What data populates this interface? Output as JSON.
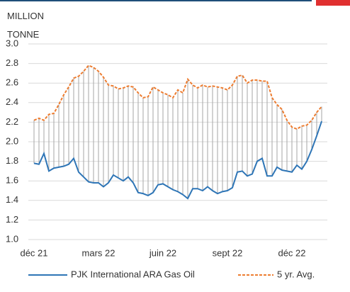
{
  "chart_data": {
    "type": "line",
    "ylabel": "MILLION TONNE",
    "categories": [
      "déc 21",
      null,
      null,
      null,
      null,
      null,
      null,
      null,
      null,
      null,
      null,
      null,
      null,
      "mars 22",
      null,
      null,
      null,
      null,
      null,
      null,
      null,
      null,
      null,
      null,
      null,
      null,
      "juin 22",
      null,
      null,
      null,
      null,
      null,
      null,
      null,
      null,
      null,
      null,
      null,
      null,
      "sept 22",
      null,
      null,
      null,
      null,
      null,
      null,
      null,
      null,
      null,
      null,
      null,
      null,
      "déc 22",
      null,
      null,
      null,
      null,
      null,
      null
    ],
    "series": [
      {
        "name": "PJK International ARA Gas Oil",
        "color": "#2e75b6",
        "dash": false,
        "values": [
          1.78,
          1.77,
          1.88,
          1.7,
          1.73,
          1.74,
          1.75,
          1.77,
          1.83,
          1.69,
          1.64,
          1.59,
          1.58,
          1.58,
          1.54,
          1.58,
          1.66,
          1.63,
          1.6,
          1.64,
          1.58,
          1.48,
          1.47,
          1.45,
          1.48,
          1.56,
          1.57,
          1.54,
          1.51,
          1.49,
          1.46,
          1.42,
          1.52,
          1.52,
          1.5,
          1.54,
          1.5,
          1.47,
          1.49,
          1.5,
          1.53,
          1.69,
          1.7,
          1.65,
          1.67,
          1.8,
          1.83,
          1.65,
          1.65,
          1.74,
          1.71,
          1.7,
          1.69,
          1.76,
          1.72,
          1.8,
          1.92,
          2.06,
          2.21
        ]
      },
      {
        "name": "5 yr. Avg.",
        "color": "#ed7d31",
        "dash": true,
        "values": [
          2.22,
          2.24,
          2.22,
          2.28,
          2.29,
          2.38,
          2.48,
          2.56,
          2.65,
          2.67,
          2.72,
          2.78,
          2.76,
          2.72,
          2.66,
          2.58,
          2.57,
          2.54,
          2.55,
          2.57,
          2.56,
          2.5,
          2.45,
          2.46,
          2.56,
          2.53,
          2.5,
          2.48,
          2.45,
          2.53,
          2.5,
          2.64,
          2.58,
          2.55,
          2.58,
          2.56,
          2.57,
          2.56,
          2.55,
          2.53,
          2.58,
          2.67,
          2.68,
          2.6,
          2.63,
          2.63,
          2.62,
          2.62,
          2.45,
          2.38,
          2.33,
          2.22,
          2.15,
          2.13,
          2.16,
          2.17,
          2.22,
          2.3,
          2.36
        ]
      }
    ],
    "ylim": [
      1.0,
      3.0
    ],
    "yticks": [
      {
        "value": 1.0,
        "label": "1.0"
      },
      1.2,
      1.4,
      1.6,
      1.8,
      {
        "value": 2.0,
        "label": "2.0"
      },
      2.2,
      2.4,
      2.6,
      2.8,
      {
        "value": 3.0,
        "label": "3.0"
      }
    ],
    "grid": true,
    "high_low_lines": true,
    "legend": "bottom"
  }
}
